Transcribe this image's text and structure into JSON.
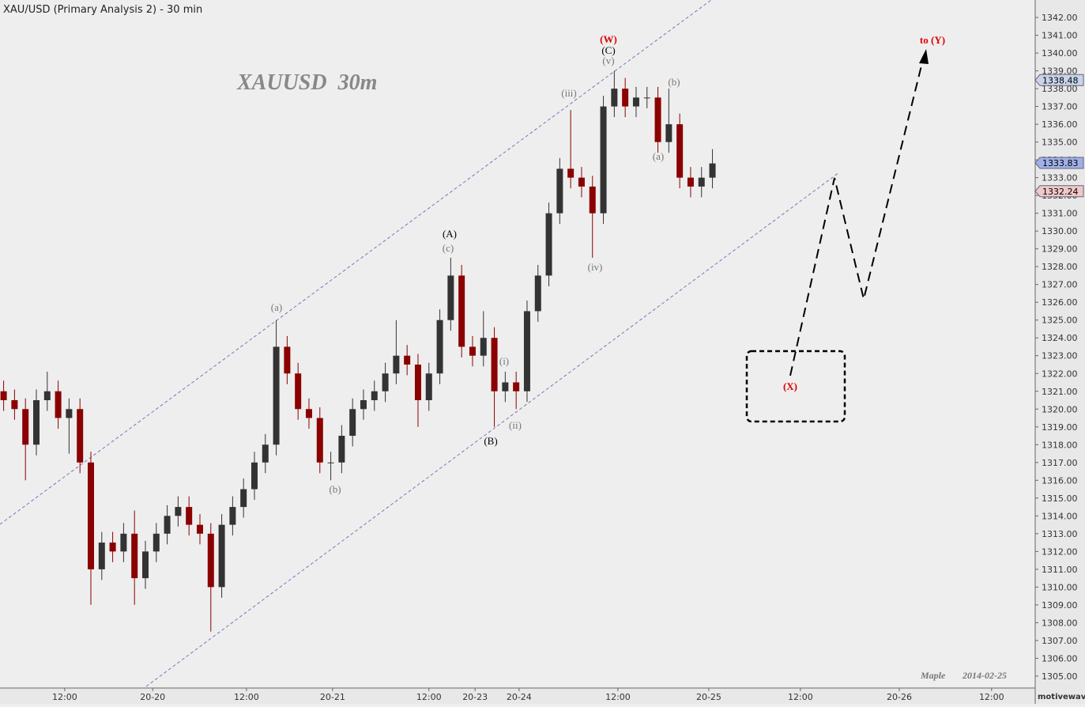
{
  "chart_data": {
    "type": "candlestick",
    "title": "XAU/USD (Primary Analysis 2) - 30 min",
    "watermark": "XAUUSD  30m",
    "author": "Maple",
    "date": "2014-02-25",
    "brand": "motivewave.com",
    "x": [
      1,
      4,
      7,
      10,
      13,
      16,
      19,
      22,
      25,
      28,
      31,
      34,
      37,
      40,
      43,
      46,
      49,
      52,
      55,
      58,
      61,
      64,
      67,
      70,
      73,
      76,
      79,
      82,
      85,
      88,
      91,
      94,
      97,
      100,
      103,
      106,
      109,
      112,
      115,
      118,
      121,
      124,
      127,
      130,
      133,
      136,
      139,
      142,
      145,
      148,
      151,
      154,
      157,
      160,
      163,
      166,
      169,
      172,
      175,
      178,
      181,
      184,
      187,
      190,
      193,
      196
    ],
    "open": [
      1321,
      1320.5,
      1320,
      1318,
      1320.5,
      1321,
      1319.5,
      1320,
      1317,
      1311,
      1312.5,
      1312,
      1313,
      1310.5,
      1312,
      1313,
      1314,
      1314.5,
      1313.5,
      1313,
      1310,
      1313.5,
      1314.5,
      1315.5,
      1317,
      1318,
      1323.5,
      1322,
      1320,
      1319.5,
      1317,
      1317,
      1318.5,
      1320,
      1320.5,
      1321,
      1322,
      1323,
      1322.5,
      1320.5,
      1322,
      1325,
      1327.5,
      1323.5,
      1323,
      1324,
      1321,
      1321.5,
      1321,
      1325.5,
      1327.5,
      1331,
      1333.5,
      1333,
      1332.5,
      1331,
      1337,
      1338,
      1337,
      1337.5,
      1337.5,
      1335,
      1336,
      1333,
      1332.5,
      1333
    ],
    "high": [
      1321.6,
      1321.1,
      1320.6,
      1321.1,
      1322.1,
      1321.6,
      1320.6,
      1320.6,
      1317.6,
      1313.1,
      1313.1,
      1313.6,
      1314.3,
      1312.6,
      1313.6,
      1314.6,
      1315.1,
      1315.1,
      1314.1,
      1313.6,
      1314.1,
      1315.1,
      1316.1,
      1317.6,
      1318.6,
      1325,
      1324.1,
      1322.6,
      1320.6,
      1320.1,
      1317.6,
      1319.1,
      1320.6,
      1321.1,
      1321.6,
      1322.6,
      1325,
      1323.6,
      1323.1,
      1322.6,
      1325.6,
      1328.5,
      1328.1,
      1324.1,
      1325.5,
      1324.6,
      1322.1,
      1322.1,
      1326.1,
      1328.1,
      1331.6,
      1334.1,
      1336.8,
      1333.6,
      1333.1,
      1337.6,
      1339,
      1338.6,
      1338.1,
      1338.1,
      1338.1,
      1338,
      1336.6,
      1333.6,
      1333.6,
      1334.6
    ],
    "low": [
      1319.9,
      1319.4,
      1316,
      1317.4,
      1319.9,
      1318.9,
      1317.5,
      1316.4,
      1309,
      1310.4,
      1311.4,
      1311.4,
      1309,
      1309.9,
      1311.4,
      1312.4,
      1313.4,
      1312.9,
      1312.4,
      1307.5,
      1309.4,
      1312.9,
      1313.9,
      1314.9,
      1316.4,
      1317.4,
      1321.4,
      1319.4,
      1318.9,
      1316.4,
      1316,
      1316.4,
      1317.9,
      1319.4,
      1319.9,
      1320.4,
      1321.4,
      1321.9,
      1319,
      1319.9,
      1321.4,
      1324.4,
      1322.9,
      1322.4,
      1322.4,
      1319,
      1320.4,
      1320,
      1320.4,
      1324.9,
      1326.9,
      1330.4,
      1332.4,
      1331.9,
      1328.5,
      1330.4,
      1336.4,
      1336.4,
      1336.4,
      1336.9,
      1334.4,
      1334.4,
      1332.4,
      1331.9,
      1331.9,
      1332.4
    ],
    "close": [
      1320.5,
      1320,
      1318,
      1320.5,
      1321,
      1319.5,
      1320,
      1317,
      1311,
      1312.5,
      1312,
      1313,
      1310.5,
      1312,
      1313,
      1314,
      1314.5,
      1313.5,
      1313,
      1310,
      1313.5,
      1314.5,
      1315.5,
      1317,
      1318,
      1323.5,
      1322,
      1320,
      1319.5,
      1317,
      1317,
      1318.5,
      1320,
      1320.5,
      1321,
      1322,
      1323,
      1322.5,
      1320.5,
      1322,
      1325,
      1327.5,
      1323.5,
      1323,
      1324,
      1321,
      1321.5,
      1321,
      1325.5,
      1327.5,
      1331,
      1333.5,
      1333,
      1332.5,
      1331,
      1337,
      1338,
      1337,
      1337.5,
      1337.5,
      1335,
      1336,
      1333,
      1332.5,
      1333,
      1333.8
    ],
    "up_color": "#333333",
    "down_color": "#8b0000",
    "xlim": [
      0,
      284.8
    ],
    "xticks": [
      {
        "value": 17.8,
        "label": "12:00"
      },
      {
        "value": 42,
        "label": "20-20"
      },
      {
        "value": 67.8,
        "label": "12:00"
      },
      {
        "value": 91.5,
        "label": "20-21"
      },
      {
        "value": 118,
        "label": "12:00"
      },
      {
        "value": 130.7,
        "label": "20-23"
      },
      {
        "value": 142.8,
        "label": "20-24"
      },
      {
        "value": 170,
        "label": "12:00"
      },
      {
        "value": 195,
        "label": "20-25"
      },
      {
        "value": 220.2,
        "label": "12:00"
      },
      {
        "value": 247.4,
        "label": "20-26"
      },
      {
        "value": 272.8,
        "label": "12:00"
      }
    ],
    "ylim": [
      1304.33,
      1342.98
    ],
    "yticks": [
      {
        "value": 1305,
        "label": "1305.00"
      },
      {
        "value": 1306,
        "label": "1306.00"
      },
      {
        "value": 1307,
        "label": "1307.00"
      },
      {
        "value": 1308,
        "label": "1308.00"
      },
      {
        "value": 1309,
        "label": "1309.00"
      },
      {
        "value": 1310,
        "label": "1310.00"
      },
      {
        "value": 1311,
        "label": "1311.00"
      },
      {
        "value": 1312,
        "label": "1312.00"
      },
      {
        "value": 1313,
        "label": "1313.00"
      },
      {
        "value": 1314,
        "label": "1314.00"
      },
      {
        "value": 1315,
        "label": "1315.00"
      },
      {
        "value": 1316,
        "label": "1316.00"
      },
      {
        "value": 1317,
        "label": "1317.00"
      },
      {
        "value": 1318,
        "label": "1318.00"
      },
      {
        "value": 1319,
        "label": "1319.00"
      },
      {
        "value": 1320,
        "label": "1320.00"
      },
      {
        "value": 1321,
        "label": "1321.00"
      },
      {
        "value": 1322,
        "label": "1322.00"
      },
      {
        "value": 1323,
        "label": "1323.00"
      },
      {
        "value": 1324,
        "label": "1324.00"
      },
      {
        "value": 1325,
        "label": "1325.00"
      },
      {
        "value": 1326,
        "label": "1326.00"
      },
      {
        "value": 1327,
        "label": "1327.00"
      },
      {
        "value": 1328,
        "label": "1328.00"
      },
      {
        "value": 1329,
        "label": "1329.00"
      },
      {
        "value": 1330,
        "label": "1330.00"
      },
      {
        "value": 1331,
        "label": "1331.00"
      },
      {
        "value": 1332,
        "label": "1332.00"
      },
      {
        "value": 1333,
        "label": "1333.00"
      },
      {
        "value": 1334,
        "label": "1334.00"
      },
      {
        "value": 1335,
        "label": "1335.00"
      },
      {
        "value": 1336,
        "label": "1336.00"
      },
      {
        "value": 1337,
        "label": "1337.00"
      },
      {
        "value": 1338,
        "label": "1338.00"
      },
      {
        "value": 1339,
        "label": "1339.00"
      },
      {
        "value": 1340,
        "label": "1340.00"
      },
      {
        "value": 1341,
        "label": "1341.00"
      },
      {
        "value": 1342,
        "label": "1342.00"
      }
    ],
    "price_tags": [
      {
        "value": 1338.48,
        "label": "1338.48",
        "color": "#c8d4ec"
      },
      {
        "value": 1333.83,
        "label": "1333.83",
        "color": "#9fb0e8"
      },
      {
        "value": 1332.24,
        "label": "1332.24",
        "color": "#f0c8c8"
      }
    ],
    "wave_labels": [
      "(a)",
      "(b)",
      "(c)",
      "(A)",
      "(B)",
      "(i)",
      "(ii)",
      "(iii)",
      "(iv)",
      "(v)",
      "(C)",
      "(W)",
      "(b)",
      "(a)",
      "to (Y)",
      "(X)"
    ]
  }
}
